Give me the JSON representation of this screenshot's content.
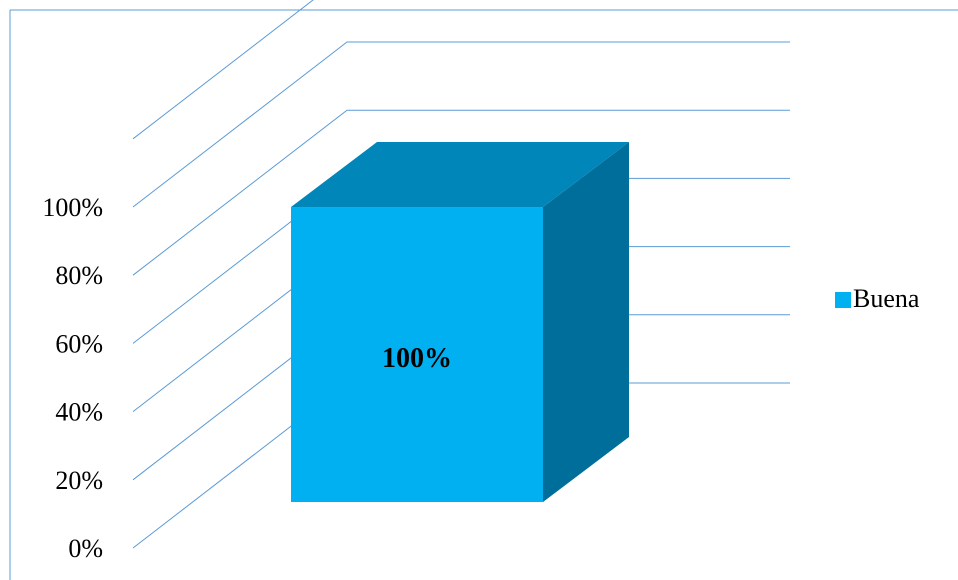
{
  "chart_data": {
    "type": "bar",
    "categories": [
      ""
    ],
    "series": [
      {
        "name": "Buena",
        "values": [
          100
        ],
        "color": "#00B0F0",
        "top_color": "#0086B8",
        "side_color": "#006E9A"
      }
    ],
    "data_labels": [
      "100%"
    ],
    "y_ticks": [
      "0%",
      "20%",
      "40%",
      "60%",
      "80%",
      "100%"
    ],
    "ylim": [
      0,
      100
    ],
    "grid": true,
    "grid_color": "#5B9BD5",
    "legend": {
      "position": "right",
      "entries": [
        "Buena"
      ]
    },
    "three_d": true
  }
}
